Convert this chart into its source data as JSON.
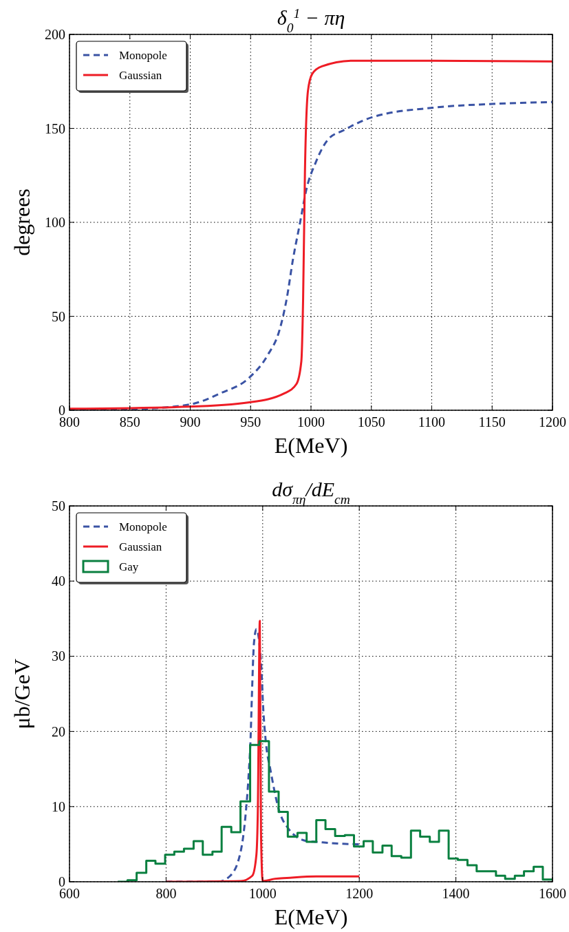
{
  "chart_data": [
    {
      "type": "line",
      "title": "δ$_{0}$$^{1}$ − πη",
      "xlabel": "E(MeV)",
      "ylabel": "degrees",
      "xlim": [
        800,
        1200
      ],
      "xticks": [
        800,
        850,
        900,
        950,
        1000,
        1050,
        1100,
        1150,
        1200
      ],
      "ylim": [
        0,
        200
      ],
      "yticks": [
        0,
        50,
        100,
        150,
        200
      ],
      "grid": true,
      "legend": "top left",
      "series": [
        {
          "name": "Monopole",
          "color": "#3a53a4",
          "line_style": "dashed",
          "x": [
            800,
            849,
            899,
            925,
            949,
            964,
            974,
            980,
            985,
            991,
            996,
            1004,
            1014,
            1027,
            1051,
            1101,
            1150,
            1200
          ],
          "values": [
            0.2,
            0.5,
            3,
            9,
            17.4,
            29.2,
            42.8,
            59.7,
            80,
            100,
            117,
            132,
            144,
            149,
            156,
            161,
            163,
            164
          ]
        },
        {
          "name": "Gaussian",
          "color": "#ee1c25",
          "line_style": "solid",
          "x": [
            800,
            899,
            949,
            978,
            988,
            992,
            993.5,
            995,
            997.5,
            1001,
            1009,
            1035,
            1101,
            1200
          ],
          "values": [
            0.8,
            1.9,
            4.2,
            9,
            14,
            26,
            60,
            127,
            170,
            179,
            183,
            186,
            186,
            185.6
          ]
        }
      ]
    },
    {
      "type": "line",
      "title": "dσ$_{πη}$/dE$_{cm}$",
      "xlabel": "E(MeV)",
      "ylabel": "μb/GeV",
      "xlim": [
        600,
        1600
      ],
      "xticks": [
        600,
        800,
        1000,
        1200,
        1400,
        1600
      ],
      "ylim": [
        0,
        50
      ],
      "yticks": [
        0,
        10,
        20,
        30,
        40,
        50
      ],
      "grid": true,
      "legend": "top left",
      "series": [
        {
          "name": "Monopole",
          "color": "#3a53a4",
          "line_style": "dashed",
          "x": [
            800,
            907,
            933,
            955,
            964,
            971,
            975,
            977.5,
            982,
            987,
            997,
            1001,
            1007,
            1016,
            1033,
            1054,
            1092,
            1111,
            1192,
            1200
          ],
          "values": [
            0,
            0,
            0.8,
            4.2,
            8.5,
            14.3,
            19.2,
            24.4,
            31.8,
            33.6,
            28.7,
            23.2,
            18.3,
            14.9,
            9.7,
            7,
            5.4,
            5.3,
            5,
            5
          ]
        },
        {
          "name": "Gaussian",
          "color": "#ee1c25",
          "line_style": "solid",
          "x": [
            800,
            955,
            978.5,
            987,
            990,
            994,
            996.5,
            1000,
            1026,
            1050,
            1111,
            1200
          ],
          "values": [
            0,
            0.1,
            0.8,
            3.6,
            9.7,
            34.7,
            6.6,
            0.1,
            0.4,
            0.5,
            0.7,
            0.7
          ]
        },
        {
          "name": "Gay",
          "color": "#0a8040",
          "type": "step",
          "x": [
            700,
            720,
            739,
            759,
            778,
            798,
            817,
            837,
            857,
            876,
            896,
            915,
            935,
            954,
            974,
            993,
            1013,
            1033,
            1052,
            1072,
            1091,
            1111,
            1130,
            1150,
            1170,
            1189,
            1209,
            1228,
            1248,
            1267,
            1287,
            1307,
            1326,
            1346,
            1365,
            1385,
            1404,
            1424,
            1443,
            1463,
            1483,
            1502,
            1522,
            1541,
            1561,
            1580,
            1600
          ],
          "values": [
            0,
            0.2,
            1.2,
            2.8,
            2.4,
            3.6,
            4,
            4.4,
            5.4,
            3.6,
            4,
            7.3,
            6.6,
            10.7,
            18.2,
            18.7,
            12,
            9.3,
            6,
            6.5,
            5.3,
            8.2,
            7,
            6.1,
            6.2,
            4.7,
            5.4,
            3.9,
            4.8,
            3.4,
            3.2,
            6.8,
            6,
            5.3,
            6.8,
            3.1,
            2.9,
            2.2,
            1.4,
            1.4,
            0.8,
            0.4,
            0.8,
            1.4,
            2,
            0.3,
            0.3
          ]
        }
      ]
    }
  ]
}
